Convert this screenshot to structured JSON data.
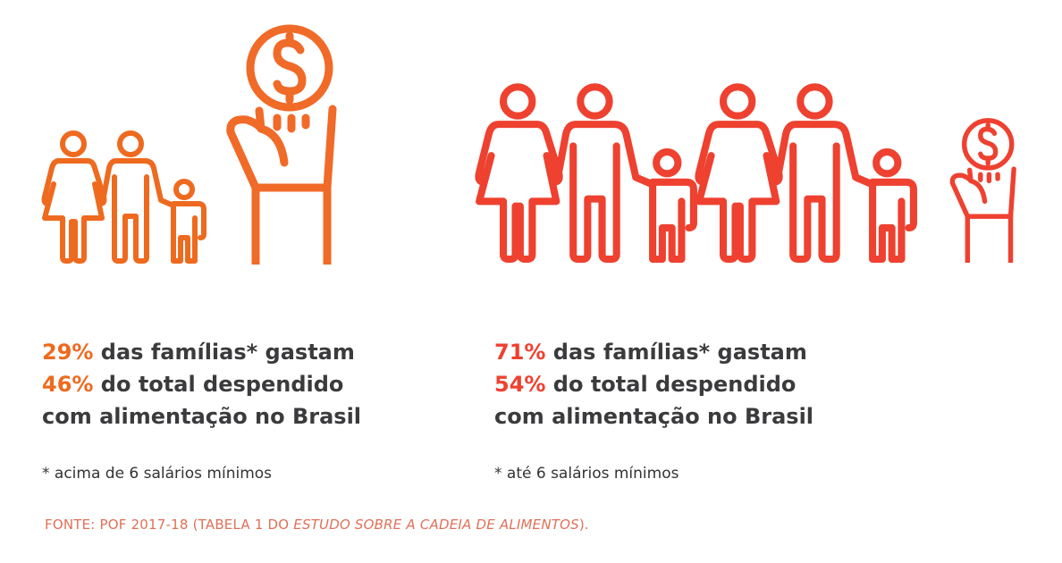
{
  "colors": {
    "left_accent": "#ee6a1f",
    "right_accent": "#ee4130",
    "text": "#3b3b3d",
    "source": "#e07058"
  },
  "left": {
    "icons": [
      "family-icon",
      "hand-coin-icon"
    ],
    "pct_families": "29%",
    "line1_rest": " das famílias* gastam",
    "pct_spending": "46%",
    "line2_rest": " do total despendido",
    "line3": "com alimentação no Brasil",
    "note": "* acima de 6 salários mínimos"
  },
  "right": {
    "icons": [
      "family-icon",
      "family-icon",
      "hand-coin-icon"
    ],
    "pct_families": "71%",
    "line1_rest": " das famílias* gastam",
    "pct_spending": "54%",
    "line2_rest": " do total despendido",
    "line3": "com alimentação no Brasil",
    "note": "* até 6 salários mínimos"
  },
  "source": {
    "prefix": "FONTE: POF 2017-18 (TABELA 1 DO ",
    "italic": "ESTUDO SOBRE A CADEIA DE ALIMENTOS",
    "suffix": ")."
  }
}
